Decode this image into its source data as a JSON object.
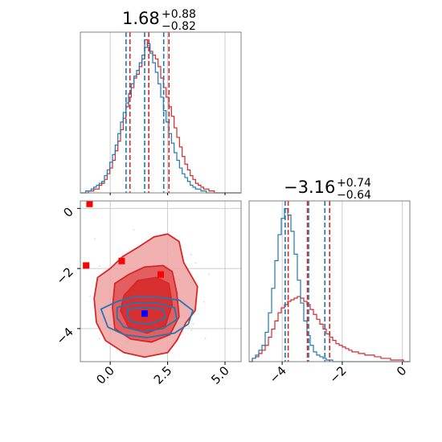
{
  "chart_data": {
    "type": "corner",
    "colors": {
      "primary": "#d62728",
      "secondary": "#1f77b4",
      "marker_red": "#ff0000",
      "marker_blue": "#0000ff",
      "grid": "#cccccc",
      "spine": "#808080"
    },
    "params": [
      {
        "title_main": "1.68",
        "title_plus": "+0.88",
        "title_minus": "−0.82",
        "range": [
          -1.3,
          5.7
        ],
        "ticks": [
          0.0,
          2.5,
          5.0
        ],
        "tick_labels": [
          "0.0",
          "2.5",
          "5.0"
        ],
        "quantiles_red": [
          0.86,
          1.68,
          2.56
        ],
        "quantiles_blue": [
          0.69,
          1.5,
          2.33
        ]
      },
      {
        "title_main": "−3.16",
        "title_plus": "+0.74",
        "title_minus": "−0.64",
        "range": [
          -5.1,
          0.25
        ],
        "ticks": [
          -4,
          -2,
          0
        ],
        "tick_labels": [
          "−4",
          "−2",
          "0"
        ],
        "quantiles_red": [
          -3.8,
          -3.16,
          -2.42
        ],
        "quantiles_blue": [
          -3.9,
          -3.12,
          -2.58
        ]
      }
    ],
    "hist1": {
      "bins": [
        -1.3,
        5.7
      ],
      "red": [
        0,
        0,
        0,
        0.01,
        0.01,
        0.02,
        0.02,
        0.04,
        0.05,
        0.07,
        0.1,
        0.13,
        0.17,
        0.22,
        0.27,
        0.33,
        0.39,
        0.45,
        0.5,
        0.55,
        0.6,
        0.62,
        0.66,
        0.7,
        0.8,
        0.77,
        0.74,
        0.72,
        0.7,
        0.66,
        0.6,
        0.55,
        0.5,
        0.45,
        0.4,
        0.34,
        0.29,
        0.24,
        0.19,
        0.15,
        0.12,
        0.09,
        0.07,
        0.05,
        0.04,
        0.03,
        0.02,
        0.02,
        0.01,
        0.01,
        0,
        0,
        0,
        0,
        0,
        0,
        0,
        0,
        0,
        0
      ],
      "blue": [
        0,
        0,
        0.01,
        0.01,
        0.02,
        0.03,
        0.04,
        0.05,
        0.06,
        0.09,
        0.12,
        0.16,
        0.2,
        0.25,
        0.31,
        0.37,
        0.42,
        0.47,
        0.52,
        0.57,
        0.61,
        0.64,
        0.68,
        0.72,
        0.76,
        0.78,
        0.73,
        0.68,
        0.63,
        0.57,
        0.5,
        0.43,
        0.37,
        0.31,
        0.26,
        0.21,
        0.17,
        0.13,
        0.1,
        0.08,
        0.06,
        0.04,
        0.03,
        0.02,
        0.02,
        0.01,
        0.01,
        0,
        0,
        0,
        0,
        0,
        0,
        0,
        0,
        0,
        0,
        0,
        0,
        0
      ]
    },
    "hist2": {
      "bins": [
        -5.1,
        0.25
      ],
      "red": [
        0,
        0.02,
        0.03,
        0.05,
        0.07,
        0.1,
        0.15,
        0.2,
        0.25,
        0.3,
        0.33,
        0.35,
        0.37,
        0.38,
        0.39,
        0.4,
        0.39,
        0.37,
        0.35,
        0.32,
        0.29,
        0.26,
        0.23,
        0.2,
        0.17,
        0.15,
        0.13,
        0.11,
        0.1,
        0.09,
        0.08,
        0.07,
        0.06,
        0.06,
        0.05,
        0.05,
        0.04,
        0.04,
        0.04,
        0.03,
        0.03,
        0.02,
        0.02,
        0.02,
        0.01,
        0.01,
        0.01,
        0.01,
        0,
        0
      ],
      "blue": [
        0,
        0.02,
        0.04,
        0.07,
        0.1,
        0.18,
        0.3,
        0.45,
        0.62,
        0.78,
        0.88,
        0.94,
        0.9,
        0.8,
        0.66,
        0.5,
        0.36,
        0.25,
        0.16,
        0.1,
        0.06,
        0.04,
        0.03,
        0.02,
        0.01,
        0.01,
        0,
        0,
        0,
        0,
        0,
        0,
        0,
        0,
        0,
        0,
        0,
        0,
        0,
        0,
        0,
        0,
        0,
        0,
        0,
        0,
        0,
        0,
        0,
        0
      ]
    },
    "markers_red": [
      [
        -0.9,
        0.15
      ],
      [
        -1.05,
        -1.9
      ],
      [
        0.5,
        -1.75
      ],
      [
        2.2,
        -2.2
      ]
    ],
    "marker_blue": [
      1.5,
      -3.5
    ],
    "contours_red": [
      {
        "level": "outer",
        "points": [
          [
            -0.55,
            -2.3
          ],
          [
            0.0,
            -2.0
          ],
          [
            0.55,
            -1.6
          ],
          [
            1.2,
            -1.3
          ],
          [
            1.9,
            -0.95
          ],
          [
            2.5,
            -0.85
          ],
          [
            3.0,
            -1.1
          ],
          [
            3.2,
            -1.8
          ],
          [
            3.5,
            -2.2
          ],
          [
            3.8,
            -2.6
          ],
          [
            3.7,
            -3.4
          ],
          [
            3.3,
            -3.8
          ],
          [
            2.9,
            -4.4
          ],
          [
            2.5,
            -4.8
          ],
          [
            1.5,
            -4.95
          ],
          [
            0.6,
            -4.8
          ],
          [
            -0.2,
            -4.4
          ],
          [
            -0.6,
            -3.8
          ],
          [
            -0.7,
            -3.0
          ]
        ]
      },
      {
        "level": "mid",
        "points": [
          [
            0.2,
            -2.5
          ],
          [
            0.8,
            -2.2
          ],
          [
            1.5,
            -1.95
          ],
          [
            2.3,
            -1.9
          ],
          [
            2.7,
            -2.1
          ],
          [
            2.9,
            -2.8
          ],
          [
            3.0,
            -3.6
          ],
          [
            2.6,
            -4.2
          ],
          [
            1.8,
            -4.45
          ],
          [
            0.9,
            -4.35
          ],
          [
            0.2,
            -4.0
          ],
          [
            0.1,
            -3.3
          ]
        ]
      },
      {
        "level": "inner",
        "points": [
          [
            0.6,
            -2.9
          ],
          [
            1.2,
            -2.4
          ],
          [
            2.0,
            -2.3
          ],
          [
            2.55,
            -2.5
          ],
          [
            2.7,
            -3.2
          ],
          [
            2.4,
            -3.9
          ],
          [
            1.6,
            -4.15
          ],
          [
            0.8,
            -3.95
          ],
          [
            0.45,
            -3.4
          ]
        ]
      }
    ],
    "contours_blue": [
      {
        "level": "outer",
        "points": [
          [
            -0.4,
            -3.35
          ],
          [
            0.3,
            -3.1
          ],
          [
            1.0,
            -2.95
          ],
          [
            2.0,
            -2.95
          ],
          [
            3.0,
            -3.05
          ],
          [
            3.6,
            -3.4
          ],
          [
            3.4,
            -3.85
          ],
          [
            2.8,
            -4.15
          ],
          [
            1.6,
            -4.3
          ],
          [
            0.6,
            -4.2
          ],
          [
            -0.1,
            -3.95
          ]
        ]
      },
      {
        "level": "mid",
        "points": [
          [
            0.3,
            -3.3
          ],
          [
            1.0,
            -3.15
          ],
          [
            2.0,
            -3.15
          ],
          [
            2.8,
            -3.3
          ],
          [
            2.9,
            -3.7
          ],
          [
            2.3,
            -4.0
          ],
          [
            1.4,
            -4.1
          ],
          [
            0.6,
            -3.95
          ],
          [
            0.3,
            -3.65
          ]
        ]
      },
      {
        "level": "inner",
        "points": [
          [
            0.75,
            -3.35
          ],
          [
            1.5,
            -3.3
          ],
          [
            2.3,
            -3.35
          ],
          [
            2.4,
            -3.65
          ],
          [
            1.7,
            -3.85
          ],
          [
            1.0,
            -3.8
          ],
          [
            0.75,
            -3.6
          ]
        ]
      }
    ]
  }
}
